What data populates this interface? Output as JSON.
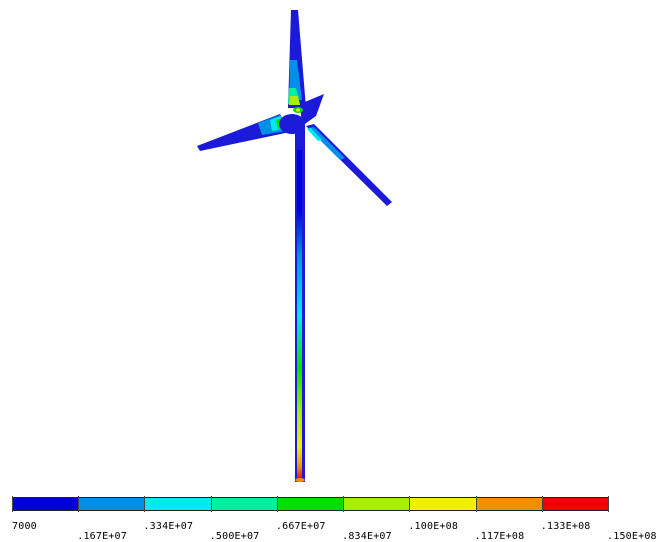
{
  "legend": {
    "colors": [
      "#0000d8",
      "#0090e8",
      "#00e8f0",
      "#00f0a0",
      "#00e000",
      "#a8f000",
      "#f0f000",
      "#f09000",
      "#f00000"
    ],
    "labels": [
      "7000",
      ".167E+07",
      ".334E+07",
      ".500E+07",
      ".667E+07",
      ".834E+07",
      ".100E+08",
      ".117E+08",
      ".133E+08",
      ".150E+08"
    ]
  },
  "model": {
    "blade_color": "#1a1ad8",
    "tower_color": "#1a1ad8",
    "hotspot_colors": [
      "#00e8f0",
      "#00e000",
      "#f0f000",
      "#f09000",
      "#f00000"
    ]
  }
}
